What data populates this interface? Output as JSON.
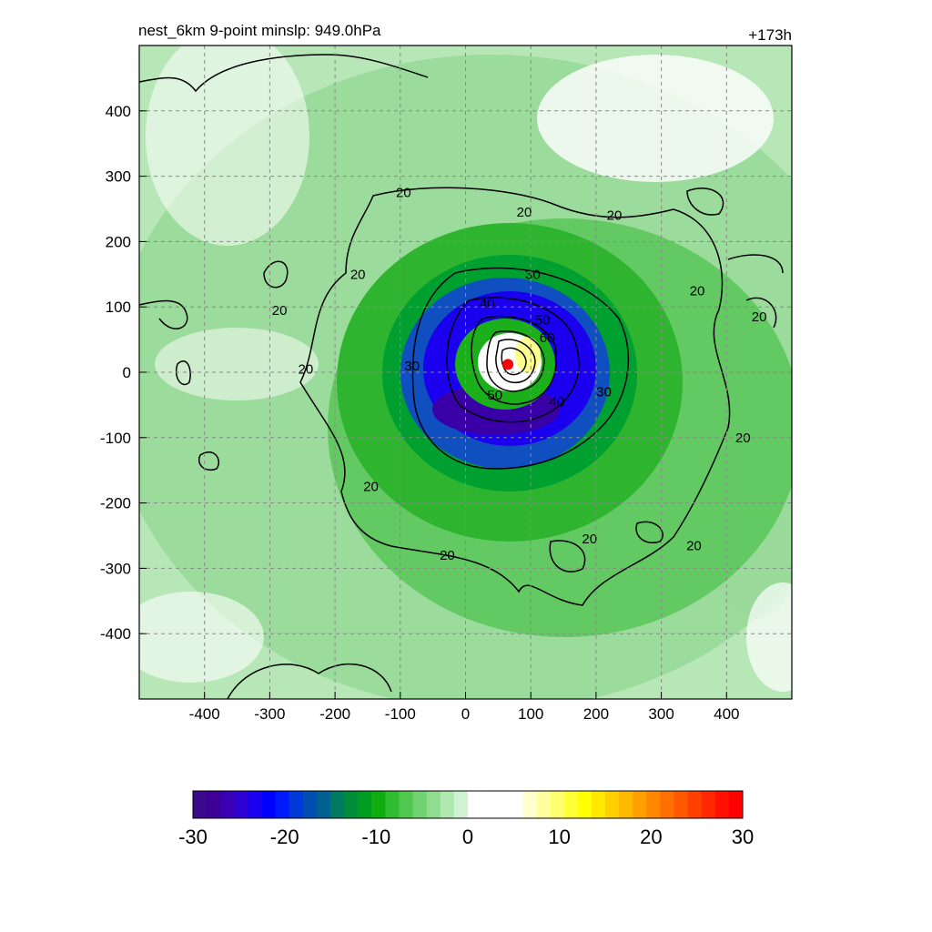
{
  "chart_data": {
    "type": "heatmap",
    "title_left": "nest_6km  9-point minslp: 949.0hPa",
    "title_right": "+173h",
    "xlabel": "",
    "ylabel": "",
    "xlim": [
      -500,
      500
    ],
    "ylim": [
      -500,
      500
    ],
    "xticks": [
      -400,
      -300,
      -200,
      -100,
      0,
      100,
      200,
      300,
      400
    ],
    "yticks": [
      -400,
      -300,
      -200,
      -100,
      0,
      100,
      200,
      300,
      400
    ],
    "grid": true,
    "center_marker": {
      "x": 65,
      "y": 12,
      "color": "#ff0000"
    },
    "contour_levels": [
      20,
      30,
      40,
      50,
      60
    ],
    "contour_labels": [
      {
        "text": "20",
        "x": -95,
        "y": 275
      },
      {
        "text": "20",
        "x": 90,
        "y": 245
      },
      {
        "text": "20",
        "x": 228,
        "y": 240
      },
      {
        "text": "20",
        "x": -165,
        "y": 150
      },
      {
        "text": "20",
        "x": -285,
        "y": 95
      },
      {
        "text": "20",
        "x": -245,
        "y": 5
      },
      {
        "text": "20",
        "x": 355,
        "y": 125
      },
      {
        "text": "20",
        "x": 450,
        "y": 85
      },
      {
        "text": "20",
        "x": 425,
        "y": -100
      },
      {
        "text": "20",
        "x": -145,
        "y": -175
      },
      {
        "text": "20",
        "x": -28,
        "y": -280
      },
      {
        "text": "20",
        "x": 190,
        "y": -255
      },
      {
        "text": "20",
        "x": 350,
        "y": -265
      },
      {
        "text": "30",
        "x": 103,
        "y": 150
      },
      {
        "text": "30",
        "x": -82,
        "y": 10
      },
      {
        "text": "30",
        "x": 212,
        "y": -30
      },
      {
        "text": "40",
        "x": 33,
        "y": 105
      },
      {
        "text": "40",
        "x": 140,
        "y": -45
      },
      {
        "text": "50",
        "x": 118,
        "y": 80
      },
      {
        "text": "50",
        "x": 45,
        "y": -35
      },
      {
        "text": "60",
        "x": 125,
        "y": 53
      }
    ],
    "colorbar": {
      "ticks": [
        -30,
        -20,
        -10,
        0,
        10,
        20,
        30
      ],
      "range": [
        -30,
        30
      ],
      "colors": [
        "#3b0a8c",
        "#3f0096",
        "#3a00b4",
        "#2e00d2",
        "#1a00ee",
        "#0000ff",
        "#0019ff",
        "#0038d9",
        "#004fb0",
        "#006090",
        "#007a60",
        "#008d3a",
        "#009e20",
        "#10ad10",
        "#30bc30",
        "#50c850",
        "#70d270",
        "#90dc90",
        "#b0e8b0",
        "#d0f2d0",
        "#ffffff",
        "#ffffff",
        "#ffffff",
        "#ffffff",
        "#ffffd0",
        "#ffffa0",
        "#ffff70",
        "#ffff38",
        "#ffff00",
        "#ffe800",
        "#ffd000",
        "#ffb800",
        "#ffa000",
        "#ff8800",
        "#ff7000",
        "#ff5800",
        "#ff4000",
        "#ff2800",
        "#ff1000",
        "#ff0000"
      ]
    }
  }
}
